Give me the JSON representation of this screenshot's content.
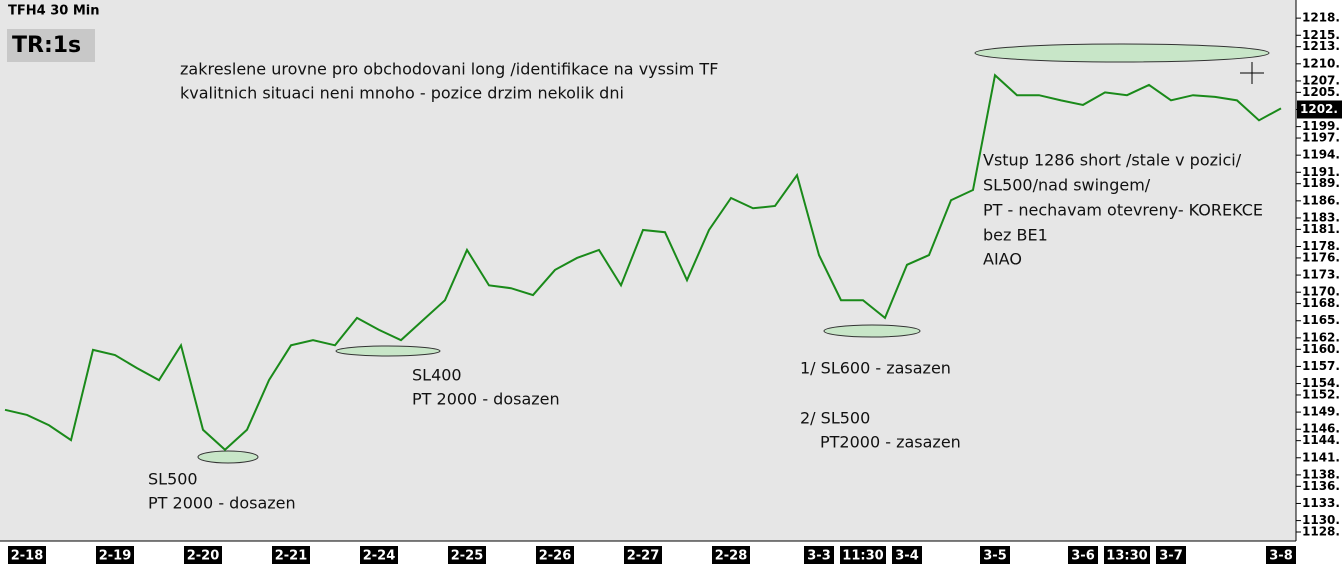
{
  "chart_data": {
    "type": "line",
    "title": "TFH4 30 Min",
    "subtitle": "TR:1s",
    "categories": [
      null,
      "2-18",
      null,
      null,
      null,
      "2-19",
      null,
      null,
      null,
      "2-20",
      null,
      null,
      null,
      "2-21",
      null,
      null,
      null,
      "2-24",
      null,
      null,
      null,
      "2-25",
      null,
      null,
      null,
      "2-26",
      null,
      null,
      null,
      "2-27",
      null,
      null,
      null,
      "2-28",
      null,
      null,
      null,
      "3-3",
      null,
      "11:30",
      null,
      "3-4",
      null,
      null,
      null,
      "3-5",
      null,
      null,
      null,
      "3-6",
      null,
      "13:30",
      null,
      "3-7",
      null,
      null,
      null,
      null,
      "3-8"
    ],
    "series": [
      {
        "color": "#1a8a1a",
        "values": [
          1149.4,
          1148.5,
          1146.7,
          1144.1,
          1159.9,
          1159,
          1156.7,
          1154.6,
          1160.7,
          1145.9,
          1142.4,
          1145.9,
          1154.6,
          1160.7,
          1161.6,
          1160.7,
          1165.5,
          1163.4,
          1161.6,
          1165.1,
          1168.6,
          1177.4,
          1171.2,
          1170.7,
          1169.5,
          1173.9,
          1176,
          1177.4,
          1171.2,
          1180.9,
          1180.5,
          1172.1,
          1180.9,
          1186.5,
          1184.7,
          1185.1,
          1190.5,
          1176.5,
          1168.6,
          1168.6,
          1165.5,
          1174.8,
          1176.5,
          1186.1,
          1187.9,
          1208,
          1204.5,
          1204.5,
          1203.6,
          1202.8,
          1205,
          1204.5,
          1206.3,
          1203.6,
          1204.5,
          1204.2,
          1203.6,
          1200.1,
          1202.2
        ]
      }
    ],
    "ylim": [
      1126.6,
      1220.3
    ],
    "yticks": [
      {
        "value": 1128,
        "label": "1128."
      },
      {
        "value": 1130,
        "label": "1130."
      },
      {
        "value": 1133,
        "label": "1133."
      },
      {
        "value": 1136,
        "label": "1136."
      },
      {
        "value": 1138,
        "label": "1138."
      },
      {
        "value": 1141,
        "label": "1141."
      },
      {
        "value": 1144,
        "label": "1144."
      },
      {
        "value": 1146,
        "label": "1146."
      },
      {
        "value": 1149,
        "label": "1149."
      },
      {
        "value": 1152,
        "label": "1152."
      },
      {
        "value": 1154,
        "label": "1154."
      },
      {
        "value": 1157,
        "label": "1157."
      },
      {
        "value": 1160,
        "label": "1160."
      },
      {
        "value": 1162,
        "label": "1162."
      },
      {
        "value": 1165,
        "label": "1165."
      },
      {
        "value": 1168,
        "label": "1168."
      },
      {
        "value": 1170,
        "label": "1170."
      },
      {
        "value": 1173,
        "label": "1173."
      },
      {
        "value": 1176,
        "label": "1176."
      },
      {
        "value": 1178,
        "label": "1178."
      },
      {
        "value": 1181,
        "label": "1181."
      },
      {
        "value": 1183,
        "label": "1183."
      },
      {
        "value": 1186,
        "label": "1186."
      },
      {
        "value": 1189,
        "label": "1189."
      },
      {
        "value": 1191,
        "label": "1191."
      },
      {
        "value": 1194,
        "label": "1194."
      },
      {
        "value": 1197,
        "label": "1197."
      },
      {
        "value": 1199,
        "label": "1199."
      },
      {
        "value": 1202,
        "label": "1202."
      },
      {
        "value": 1205,
        "label": "1205."
      },
      {
        "value": 1207,
        "label": "1207."
      },
      {
        "value": 1210,
        "label": "1210."
      },
      {
        "value": 1213,
        "label": "1213."
      },
      {
        "value": 1215,
        "label": "1215."
      },
      {
        "value": 1218,
        "label": "1218."
      }
    ],
    "last_price": {
      "value": 1202,
      "label": "1202."
    },
    "annotations": [
      "zakreslene urovne pro obchodovani long /identifikace na vyssim TF",
      "kvalitnich situaci neni mnoho - pozice drzim nekolik dni",
      "SL500",
      "PT 2000 - dosazen",
      "SL400",
      "PT 2000 - dosazen",
      "1/ SL600 - zasazen",
      "2/ SL500",
      "PT2000 - zasazen",
      "Vstup 1286 short /stale v pozici/",
      "SL500/nad swingem/",
      "PT - nechavam otevreny- KOREKCE",
      "bez BE1",
      "AIAO"
    ]
  }
}
